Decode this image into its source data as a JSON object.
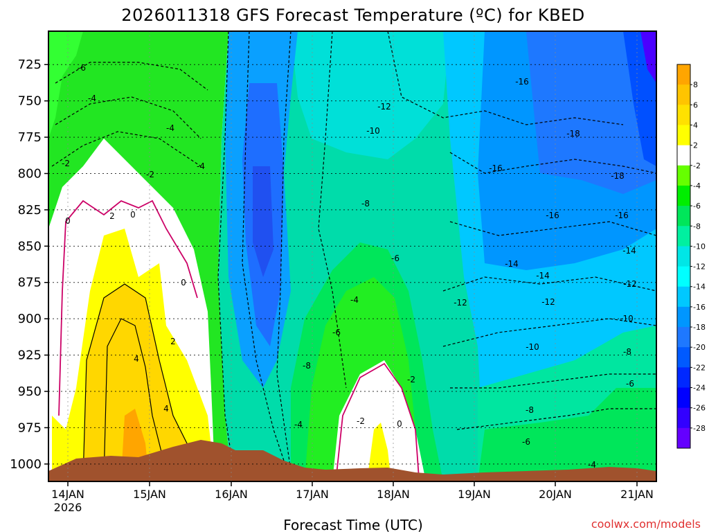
{
  "chart_data": {
    "type": "heatmap",
    "title": "2026011318 GFS Forecast Temperature (ºC) for KBED",
    "xlabel": "Forecast Time (UTC)",
    "ylabel": "",
    "x_ticks": [
      "14JAN",
      "15JAN",
      "16JAN",
      "17JAN",
      "18JAN",
      "19JAN",
      "20JAN",
      "21JAN"
    ],
    "x_year": "2026",
    "y_ticks": [
      725,
      750,
      775,
      800,
      825,
      850,
      875,
      900,
      925,
      950,
      975,
      1000
    ],
    "ylim": [
      1012,
      702
    ],
    "grid": true,
    "credit": "coolwx.com/models",
    "colorbar": {
      "labels": [
        "8",
        "6",
        "4",
        "2",
        "-2",
        "-4",
        "-6",
        "-8",
        "-10",
        "-12",
        "-14",
        "-16",
        "-18",
        "-20",
        "-22",
        "-24",
        "-26",
        "-28"
      ],
      "colors": [
        "#ffa500",
        "#ffc400",
        "#ffe100",
        "#ffff00",
        "#ffffff",
        "#66ff00",
        "#00ee00",
        "#00e65a",
        "#00f0a0",
        "#00e6e6",
        "#00ffff",
        "#00c8ff",
        "#0096ff",
        "#1e78ff",
        "#005aff",
        "#0028ff",
        "#0000ff",
        "#3200ff",
        "#6400ff"
      ]
    },
    "contour_labels": [
      "-6",
      "-4",
      "-4",
      "-2",
      "-2",
      "-4",
      "0",
      "2",
      "0",
      "0",
      "2",
      "4",
      "4",
      "-12",
      "-10",
      "-8",
      "-6",
      "-4",
      "-6",
      "-8",
      "-4",
      "-2",
      "-2",
      "0",
      "-16",
      "-18",
      "-16",
      "-18",
      "-16",
      "-16",
      "-14",
      "-14",
      "-14",
      "-12",
      "-12",
      "-12",
      "-10",
      "-10",
      "-8",
      "-8",
      "-6",
      "-6",
      "-4"
    ]
  }
}
